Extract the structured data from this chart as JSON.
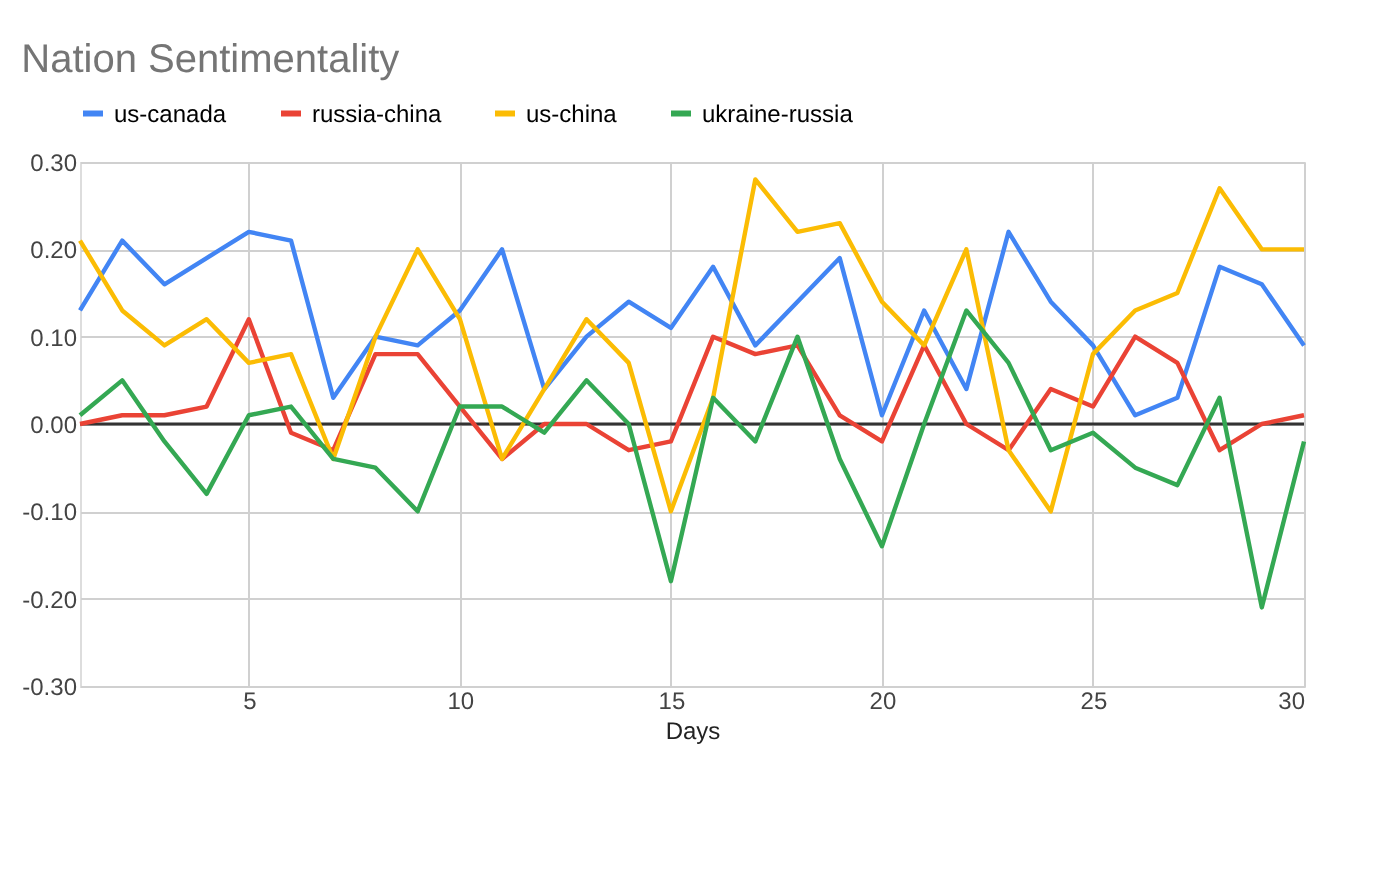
{
  "chart_data": {
    "type": "line",
    "title": "Nation Sentimentality",
    "xlabel": "Days",
    "x": [
      1,
      2,
      3,
      4,
      5,
      6,
      7,
      8,
      9,
      10,
      11,
      12,
      13,
      14,
      15,
      16,
      17,
      18,
      19,
      20,
      21,
      22,
      23,
      24,
      25,
      26,
      27,
      28,
      29,
      30
    ],
    "series": [
      {
        "name": "us-canada",
        "color": "#4285f4",
        "values": [
          0.13,
          0.21,
          0.16,
          0.19,
          0.22,
          0.21,
          0.03,
          0.1,
          0.09,
          0.13,
          0.2,
          0.04,
          0.1,
          0.14,
          0.11,
          0.18,
          0.09,
          0.14,
          0.19,
          0.01,
          0.13,
          0.04,
          0.22,
          0.14,
          0.09,
          0.01,
          0.03,
          0.18,
          0.16,
          0.09
        ]
      },
      {
        "name": "russia-china",
        "color": "#ea4335",
        "values": [
          0.0,
          0.01,
          0.01,
          0.02,
          0.12,
          -0.01,
          -0.03,
          0.08,
          0.08,
          0.02,
          -0.04,
          0.0,
          0.0,
          -0.03,
          -0.02,
          0.1,
          0.08,
          0.09,
          0.01,
          -0.02,
          0.09,
          0.0,
          -0.03,
          0.04,
          0.02,
          0.1,
          0.07,
          -0.03,
          0.0,
          0.01
        ]
      },
      {
        "name": "us-china",
        "color": "#fbbc04",
        "values": [
          0.21,
          0.13,
          0.09,
          0.12,
          0.07,
          0.08,
          -0.04,
          0.1,
          0.2,
          0.12,
          -0.04,
          0.04,
          0.12,
          0.07,
          -0.1,
          0.03,
          0.28,
          0.22,
          0.23,
          0.14,
          0.09,
          0.2,
          -0.03,
          -0.1,
          0.08,
          0.13,
          0.15,
          0.27,
          0.2,
          0.2
        ]
      },
      {
        "name": "ukraine-russia",
        "color": "#34a853",
        "values": [
          0.01,
          0.05,
          -0.02,
          -0.08,
          0.01,
          0.02,
          -0.04,
          -0.05,
          -0.1,
          0.02,
          0.02,
          -0.01,
          0.05,
          0.0,
          -0.18,
          0.03,
          -0.02,
          0.1,
          -0.04,
          -0.14,
          0.0,
          0.13,
          0.07,
          -0.03,
          -0.01,
          -0.05,
          -0.07,
          0.03,
          -0.21,
          -0.02
        ]
      }
    ],
    "xlim": [
      1,
      30
    ],
    "xticks": [
      5,
      10,
      15,
      20,
      25,
      30
    ],
    "ylim": [
      -0.3,
      0.3
    ],
    "yticks": [
      {
        "value": -0.3,
        "label": "-0.30"
      },
      {
        "value": -0.2,
        "label": "-0.20"
      },
      {
        "value": -0.1,
        "label": "-0.10"
      },
      {
        "value": 0,
        "label": "0.00"
      },
      {
        "value": 0.1,
        "label": "0.10"
      },
      {
        "value": 0.2,
        "label": "0.20"
      },
      {
        "value": 0.3,
        "label": "0.30"
      }
    ],
    "ref_lines": [
      {
        "axis": "y",
        "value": 0,
        "color": "#333333"
      }
    ],
    "grid": true,
    "legend": "top",
    "marker": "none",
    "line_style": "solid"
  }
}
